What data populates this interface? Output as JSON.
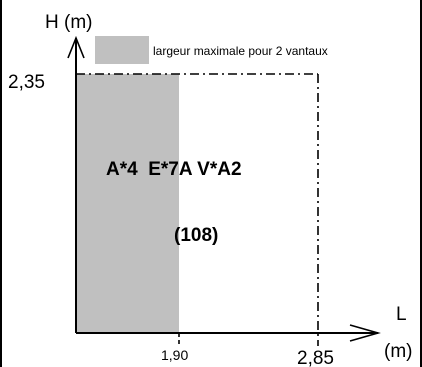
{
  "axes": {
    "y_label": "H (m)",
    "x_label_letter": "L",
    "x_label_unit": "(m)",
    "y_tick": "2,35",
    "x_ticks": [
      "1,90",
      "2,85"
    ]
  },
  "legend": {
    "label": "largeur maximale pour 2 vantaux",
    "swatch_color": "#c0c0c0"
  },
  "classification": {
    "line": "A*4  E*7A V*A2",
    "code": "(108)"
  },
  "colors": {
    "shaded_region": "#c0c0c0",
    "lines": "#000000"
  }
}
